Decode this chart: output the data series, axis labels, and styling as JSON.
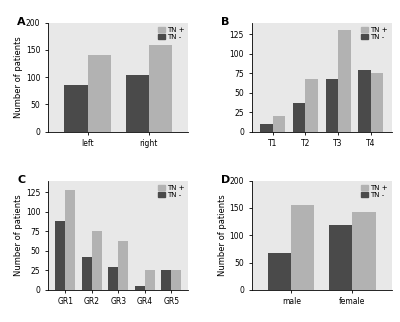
{
  "panel_A": {
    "label": "A",
    "categories": [
      "left",
      "right"
    ],
    "tn_plus": [
      140,
      158
    ],
    "tn_minus": [
      85,
      103
    ],
    "ylim": [
      0,
      200
    ],
    "yticks": [
      0,
      50,
      100,
      150,
      200
    ],
    "ylabel": "Number of patients",
    "has_ylabel": true
  },
  "panel_B": {
    "label": "B",
    "categories": [
      "T1",
      "T2",
      "T3",
      "T4"
    ],
    "tn_plus": [
      20,
      67,
      130,
      75
    ],
    "tn_minus": [
      10,
      37,
      68,
      79
    ],
    "ylim": [
      0,
      140
    ],
    "yticks": [
      0,
      25,
      50,
      75,
      100,
      125
    ],
    "ylabel": "",
    "has_ylabel": false
  },
  "panel_C": {
    "label": "C",
    "categories": [
      "GR1",
      "GR2",
      "GR3",
      "GR4",
      "GR5"
    ],
    "tn_plus": [
      128,
      75,
      62,
      25,
      25
    ],
    "tn_minus": [
      88,
      42,
      29,
      5,
      26
    ],
    "ylim": [
      0,
      140
    ],
    "yticks": [
      0,
      25,
      50,
      75,
      100,
      125
    ],
    "ylabel": "Number of patients",
    "has_ylabel": true
  },
  "panel_D": {
    "label": "D",
    "categories": [
      "male",
      "female"
    ],
    "tn_plus": [
      155,
      143
    ],
    "tn_minus": [
      68,
      118
    ],
    "ylim": [
      0,
      200
    ],
    "yticks": [
      0,
      50,
      100,
      150,
      200
    ],
    "ylabel": "Number of patients",
    "has_ylabel": true
  },
  "color_tn_plus": "#b2b2b2",
  "color_tn_minus": "#4a4a4a",
  "bg_color": "#e8e8e8",
  "legend_labels": [
    "TN +",
    "TN -"
  ],
  "bar_width": 0.38
}
